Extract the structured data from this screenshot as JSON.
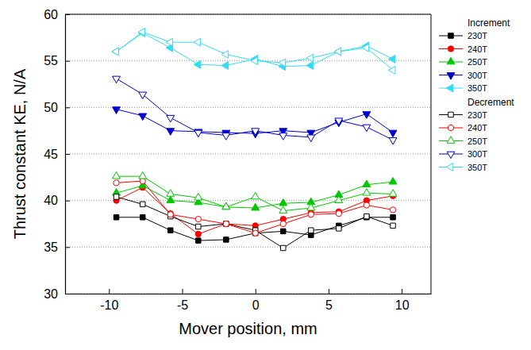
{
  "chart_data": {
    "type": "line",
    "x_label": "Mover position, mm",
    "y_label": "Thrust constant KE, N/A",
    "x": [
      -9.5,
      -7.7,
      -5.8,
      -3.9,
      -2,
      0,
      1.9,
      3.8,
      5.7,
      7.6,
      9.4
    ],
    "xlim": [
      -13,
      12
    ],
    "xticks": [
      -10,
      -5,
      0,
      5,
      10
    ],
    "ylim": [
      30,
      60
    ],
    "yticks": [
      30,
      35,
      40,
      45,
      50,
      55,
      60
    ],
    "grid": true,
    "legend": "right",
    "series": [
      {
        "name": "230T",
        "group": "Increment",
        "color": "#000000",
        "marker": "square",
        "values": [
          38.2,
          38.2,
          36.8,
          35.7,
          35.8,
          36.5,
          36.7,
          36.3,
          37.3,
          38.2,
          38.2
        ]
      },
      {
        "name": "240T",
        "group": "Increment",
        "color": "#ff0000",
        "marker": "circle",
        "values": [
          40.0,
          41.4,
          38.6,
          36.4,
          37.5,
          37.3,
          38.0,
          38.7,
          38.8,
          40.0,
          40.5
        ]
      },
      {
        "name": "250T",
        "group": "Increment",
        "color": "#00c800",
        "marker": "triangle-up",
        "values": [
          40.8,
          41.6,
          40.0,
          39.8,
          39.3,
          39.2,
          39.7,
          39.8,
          40.6,
          41.7,
          42.0
        ]
      },
      {
        "name": "300T",
        "group": "Increment",
        "color": "#0000cc",
        "marker": "triangle-down",
        "values": [
          49.8,
          49.1,
          47.5,
          47.4,
          47.3,
          47.2,
          47.5,
          47.3,
          48.4,
          49.3,
          47.3
        ]
      },
      {
        "name": "350T",
        "group": "Increment",
        "color": "#33dcf0",
        "marker": "triangle-left",
        "values": [
          56.0,
          58.0,
          56.4,
          54.6,
          54.5,
          55.2,
          54.4,
          54.5,
          56.0,
          56.6,
          55.2
        ]
      },
      {
        "name": "230T",
        "group": "Decrement",
        "color": "#000000",
        "marker": "square-open",
        "values": [
          40.4,
          39.6,
          38.3,
          37.2,
          37.5,
          36.8,
          34.9,
          36.8,
          37.0,
          38.3,
          37.3
        ]
      },
      {
        "name": "240T",
        "group": "Decrement",
        "color": "#ff0000",
        "marker": "circle-open",
        "values": [
          41.9,
          42.1,
          38.5,
          38.0,
          37.5,
          36.5,
          37.5,
          38.5,
          38.6,
          39.5,
          39.0
        ]
      },
      {
        "name": "250T",
        "group": "Decrement",
        "color": "#00c800",
        "marker": "triangle-up-open",
        "values": [
          42.6,
          42.6,
          40.7,
          40.3,
          39.3,
          40.4,
          38.9,
          39.2,
          40.0,
          40.8,
          40.7
        ]
      },
      {
        "name": "300T",
        "group": "Decrement",
        "color": "#0000cc",
        "marker": "triangle-down-open",
        "values": [
          53.1,
          51.4,
          48.9,
          47.3,
          47.0,
          47.5,
          47.0,
          46.8,
          48.6,
          47.9,
          46.5
        ]
      },
      {
        "name": "350T",
        "group": "Decrement",
        "color": "#33dcf0",
        "marker": "triangle-left-open",
        "values": [
          56.0,
          58.1,
          57.0,
          57.0,
          55.7,
          55.0,
          54.8,
          55.3,
          56.0,
          56.4,
          54.0
        ]
      }
    ]
  }
}
